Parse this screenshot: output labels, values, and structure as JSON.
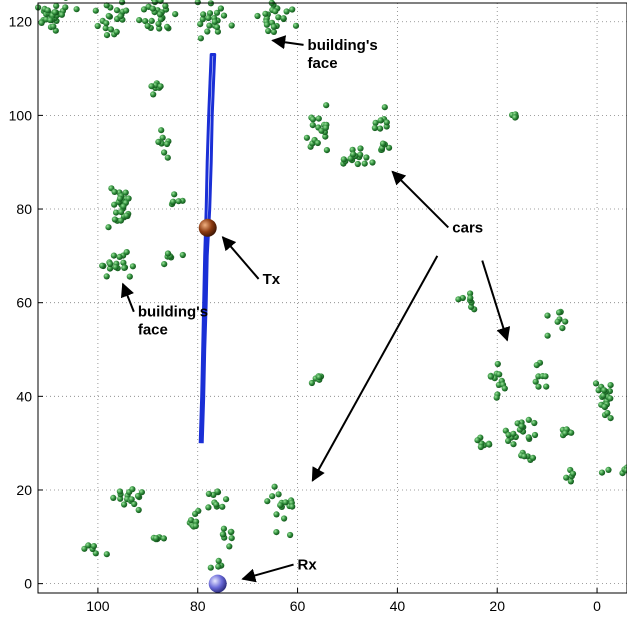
{
  "chart_data": {
    "type": "scatter",
    "title": "",
    "xlabel": "",
    "ylabel": "",
    "x_reversed": true,
    "xlim": [
      112,
      -6
    ],
    "ylim": [
      -2,
      124
    ],
    "grid": true,
    "x_ticks": [
      "100",
      "80",
      "60",
      "40",
      "20",
      "0"
    ],
    "y_ticks": [
      "0",
      "20",
      "40",
      "60",
      "80",
      "100",
      "120"
    ],
    "colors": {
      "points": "#2e8b3a",
      "trajectory": "#1a2fd6",
      "tx": "#8b3a10",
      "rx": "#6a6ad8"
    },
    "clusters": [
      {
        "x": 109,
        "y": 121,
        "spread": [
          3,
          3
        ],
        "count": 30
      },
      {
        "x": 97,
        "y": 121,
        "spread": [
          2.5,
          3
        ],
        "count": 22
      },
      {
        "x": 88,
        "y": 121,
        "spread": [
          3,
          3
        ],
        "count": 26
      },
      {
        "x": 77,
        "y": 121,
        "spread": [
          3,
          3
        ],
        "count": 20
      },
      {
        "x": 65,
        "y": 121,
        "spread": [
          3,
          3
        ],
        "count": 24
      },
      {
        "x": 88,
        "y": 106,
        "spread": [
          1.5,
          1.5
        ],
        "count": 7
      },
      {
        "x": 87,
        "y": 94,
        "spread": [
          1.5,
          2.2
        ],
        "count": 8
      },
      {
        "x": 84,
        "y": 82,
        "spread": [
          1.5,
          1.2
        ],
        "count": 6
      },
      {
        "x": 96,
        "y": 80,
        "spread": [
          2,
          3
        ],
        "count": 30
      },
      {
        "x": 96,
        "y": 68,
        "spread": [
          2.5,
          2.5
        ],
        "count": 18
      },
      {
        "x": 86,
        "y": 70,
        "spread": [
          2,
          1.2
        ],
        "count": 7
      },
      {
        "x": 56,
        "y": 96,
        "spread": [
          2,
          4
        ],
        "count": 18
      },
      {
        "x": 48,
        "y": 91,
        "spread": [
          3.5,
          1.5
        ],
        "count": 16
      },
      {
        "x": 43,
        "y": 99,
        "spread": [
          1.5,
          2
        ],
        "count": 8
      },
      {
        "x": 43,
        "y": 93,
        "spread": [
          1.5,
          1.5
        ],
        "count": 6
      },
      {
        "x": 16,
        "y": 100,
        "spread": [
          1.5,
          0.5
        ],
        "count": 4
      },
      {
        "x": 26,
        "y": 60,
        "spread": [
          1.5,
          2
        ],
        "count": 8
      },
      {
        "x": 8,
        "y": 56,
        "spread": [
          1.5,
          2.5
        ],
        "count": 8
      },
      {
        "x": 56,
        "y": 44,
        "spread": [
          1.5,
          1
        ],
        "count": 6
      },
      {
        "x": 20,
        "y": 43,
        "spread": [
          2,
          3
        ],
        "count": 12
      },
      {
        "x": 11,
        "y": 44,
        "spread": [
          1.2,
          2.5
        ],
        "count": 8
      },
      {
        "x": -2,
        "y": 39,
        "spread": [
          1.5,
          4
        ],
        "count": 20
      },
      {
        "x": 15,
        "y": 32,
        "spread": [
          3,
          2.5
        ],
        "count": 20
      },
      {
        "x": 23,
        "y": 30,
        "spread": [
          2.5,
          1.5
        ],
        "count": 8
      },
      {
        "x": 13,
        "y": 27,
        "spread": [
          2,
          1
        ],
        "count": 6
      },
      {
        "x": 6,
        "y": 32,
        "spread": [
          2,
          1
        ],
        "count": 6
      },
      {
        "x": 6,
        "y": 23,
        "spread": [
          1,
          1.5
        ],
        "count": 5
      },
      {
        "x": -4,
        "y": 24,
        "spread": [
          2,
          1
        ],
        "count": 6
      },
      {
        "x": 94,
        "y": 18,
        "spread": [
          3,
          2
        ],
        "count": 16
      },
      {
        "x": 88,
        "y": 10,
        "spread": [
          2.5,
          0.5
        ],
        "count": 6
      },
      {
        "x": 101,
        "y": 7,
        "spread": [
          2,
          1
        ],
        "count": 6
      },
      {
        "x": 81,
        "y": 14,
        "spread": [
          1.5,
          2
        ],
        "count": 8
      },
      {
        "x": 76,
        "y": 18,
        "spread": [
          2,
          2
        ],
        "count": 10
      },
      {
        "x": 74,
        "y": 10,
        "spread": [
          1.5,
          2.5
        ],
        "count": 8
      },
      {
        "x": 63,
        "y": 16,
        "spread": [
          2.5,
          4
        ],
        "count": 16
      },
      {
        "x": 76,
        "y": 4,
        "spread": [
          1,
          1
        ],
        "count": 4
      }
    ],
    "trajectory": [
      [
        79.5,
        30
      ],
      [
        79.2,
        40
      ],
      [
        79.0,
        50
      ],
      [
        78.8,
        60
      ],
      [
        78.6,
        70
      ],
      [
        78.3,
        80
      ],
      [
        78.1,
        90
      ],
      [
        77.8,
        100
      ],
      [
        77.5,
        108
      ],
      [
        77.3,
        113
      ],
      [
        76.6,
        113
      ],
      [
        76.8,
        108
      ],
      [
        77.1,
        100
      ],
      [
        77.3,
        90
      ],
      [
        77.6,
        80
      ],
      [
        77.8,
        76
      ],
      [
        78.1,
        70
      ],
      [
        78.3,
        60
      ],
      [
        78.6,
        50
      ],
      [
        78.8,
        40
      ],
      [
        79.1,
        30
      ]
    ],
    "tx": {
      "x": 78,
      "y": 76
    },
    "rx": {
      "x": 76,
      "y": 0
    }
  },
  "annotations": [
    {
      "label": "building's\nface",
      "text_at": [
        58,
        114
      ],
      "arrow_to": [
        65,
        116
      ]
    },
    {
      "label": "building's\nface",
      "text_at": [
        92,
        57
      ],
      "arrow_to": [
        95,
        64
      ]
    },
    {
      "label": "Tx",
      "text_at": [
        67,
        64
      ],
      "arrow_to": [
        75,
        74
      ]
    },
    {
      "label": "cars",
      "text_at": [
        29,
        75
      ],
      "arrow_to": [
        41,
        88
      ]
    },
    {
      "label": "Rx",
      "text_at": [
        60,
        3
      ],
      "arrow_to": [
        71,
        1
      ]
    }
  ],
  "car_arrows": [
    {
      "from": [
        32,
        70
      ],
      "to": [
        57,
        22
      ]
    },
    {
      "from": [
        23,
        69
      ],
      "to": [
        18,
        52
      ]
    }
  ]
}
